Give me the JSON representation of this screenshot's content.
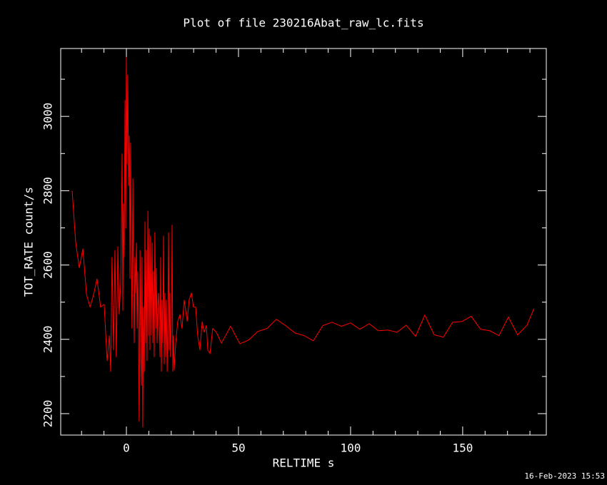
{
  "chart_data": {
    "type": "line",
    "title": "Plot of file 230216Abat_raw_lc.fits",
    "xlabel": "RELTIME  s",
    "ylabel": "TOT_RATE  count/s",
    "footer": "16-Feb-2023 15:53",
    "color": "#ff0000",
    "xlim": [
      -29.3,
      187.3
    ],
    "ylim": [
      2142.3,
      3182.7
    ],
    "xticks": [
      0,
      50,
      100,
      150
    ],
    "yticks": [
      2200,
      2400,
      2600,
      2800,
      3000
    ],
    "xticks_minor": [
      -20,
      -10,
      10,
      20,
      30,
      40,
      60,
      70,
      80,
      90,
      110,
      120,
      130,
      140,
      160,
      170,
      180
    ],
    "yticks_minor": [
      2300,
      2500,
      2700,
      2900,
      3100
    ],
    "x": [
      -24.2,
      -22.6,
      -21,
      -19.4,
      -17.8,
      -16.2,
      -14.6,
      -13.1,
      -11.5,
      -9.9,
      -8.6,
      -7.6,
      -7,
      -6.4,
      -5.7,
      -5.1,
      -4.5,
      -3.8,
      -3.2,
      -2.5,
      -1.9,
      -1.6,
      -1.3,
      -1,
      -0.6,
      -0.3,
      0,
      0.3,
      0.6,
      1,
      1.3,
      1.6,
      1.9,
      2.2,
      2.5,
      2.9,
      3.2,
      3.5,
      3.8,
      4.1,
      4.5,
      4.8,
      5.1,
      5.4,
      5.7,
      6.1,
      6.4,
      6.7,
      7,
      7.3,
      7.6,
      8,
      8.3,
      8.6,
      8.9,
      9.2,
      9.6,
      9.9,
      10.2,
      10.5,
      10.8,
      11.1,
      11.5,
      11.8,
      12.1,
      12.4,
      12.7,
      13.1,
      13.4,
      13.7,
      14,
      14.3,
      14.6,
      15,
      15.3,
      15.6,
      15.9,
      16.2,
      16.6,
      16.9,
      17.2,
      17.5,
      17.8,
      18.2,
      18.5,
      18.8,
      19.1,
      19.4,
      19.7,
      20.1,
      20.4,
      20.7,
      21,
      21.3,
      22,
      22.9,
      23.9,
      24.8,
      25.8,
      27.1,
      28,
      29,
      29.9,
      30.9,
      31.8,
      32.8,
      33.8,
      34.7,
      35.7,
      36.3,
      37.3,
      38.5,
      40.1,
      42.4,
      46.5,
      50.6,
      54.5,
      58.6,
      62.7,
      66.9,
      71,
      75.2,
      79.3,
      83.4,
      87.6,
      91.7,
      95.9,
      100,
      104.1,
      108.3,
      112.4,
      116.6,
      120.7,
      124.8,
      129,
      133.1,
      137.3,
      141.4,
      145.5,
      149.7,
      153.8,
      158,
      162.1,
      166.2,
      170.4,
      174.5,
      178.7,
      181.8
    ],
    "values": [
      2800,
      2660,
      2592,
      2644,
      2521,
      2487,
      2521,
      2563,
      2487,
      2494,
      2342,
      2410,
      2313,
      2621,
      2371,
      2640,
      2352,
      2650,
      2467,
      2554,
      2900,
      2477,
      2765,
      2621,
      3044,
      2698,
      3160,
      2871,
      3112,
      2813,
      2948,
      2563,
      2929,
      2640,
      2429,
      2833,
      2544,
      2390,
      2621,
      2525,
      2660,
      2429,
      2583,
      2410,
      2179,
      2640,
      2352,
      2275,
      2621,
      2163,
      2487,
      2313,
      2717,
      2390,
      2640,
      2342,
      2746,
      2410,
      2698,
      2371,
      2679,
      2410,
      2660,
      2390,
      2583,
      2352,
      2688,
      2429,
      2592,
      2390,
      2487,
      2525,
      2458,
      2352,
      2621,
      2313,
      2506,
      2390,
      2679,
      2333,
      2525,
      2352,
      2506,
      2313,
      2467,
      2688,
      2371,
      2525,
      2352,
      2467,
      2708,
      2313,
      2410,
      2317,
      2390,
      2448,
      2467,
      2429,
      2506,
      2448,
      2506,
      2525,
      2487,
      2487,
      2410,
      2371,
      2448,
      2419,
      2438,
      2371,
      2362,
      2429,
      2419,
      2390,
      2435,
      2388,
      2398,
      2421,
      2429,
      2454,
      2437,
      2417,
      2410,
      2396,
      2437,
      2446,
      2435,
      2444,
      2427,
      2442,
      2423,
      2425,
      2419,
      2438,
      2408,
      2465,
      2412,
      2406,
      2446,
      2448,
      2462,
      2427,
      2423,
      2410,
      2460,
      2412,
      2438,
      2483
    ]
  }
}
